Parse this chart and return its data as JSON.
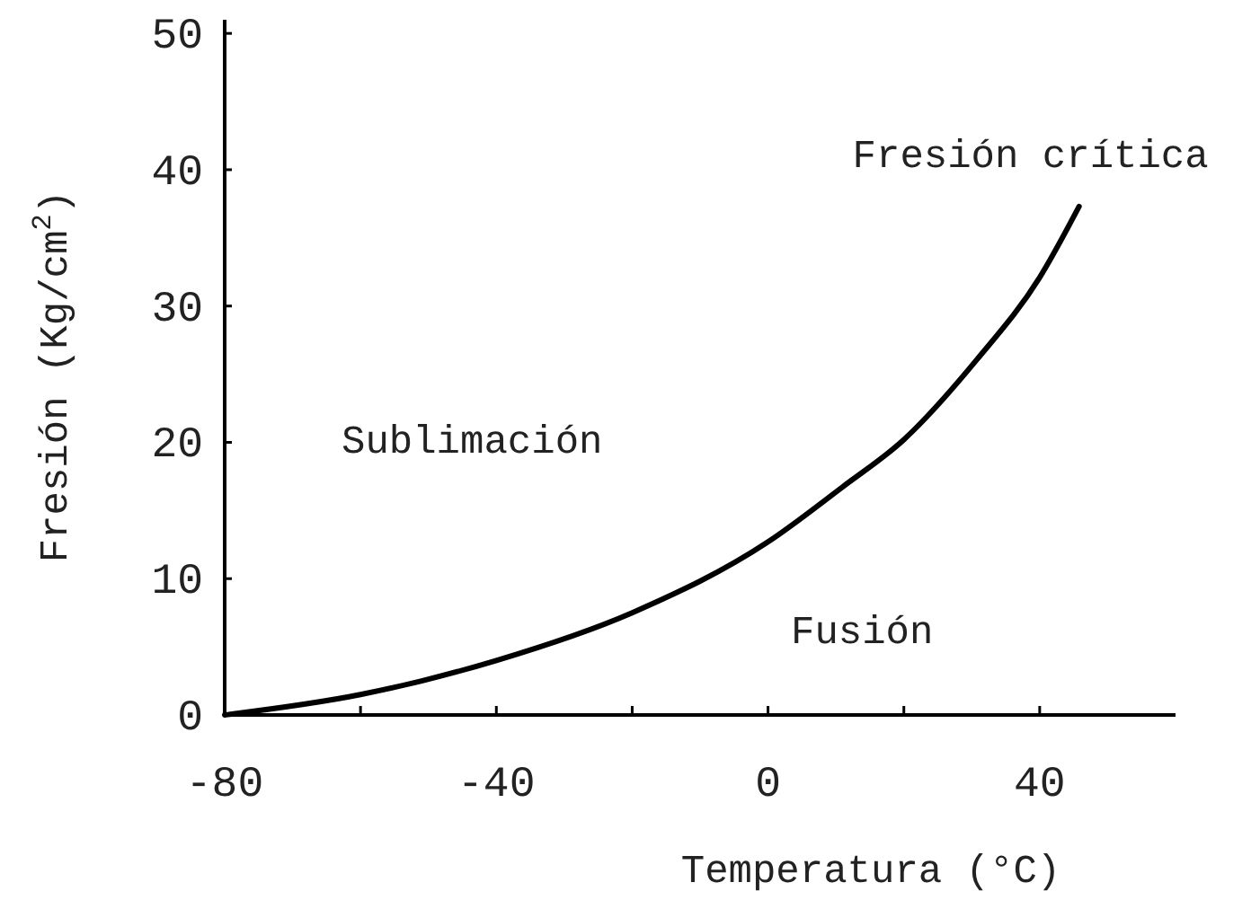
{
  "chart_data": {
    "type": "line",
    "xlabel": "Temperatura (°C)",
    "ylabel": "Fresión (Kg/cm$^{2}$)",
    "x": [
      -80,
      -60,
      -51,
      -40,
      -20,
      0,
      10.9,
      20,
      30.8,
      40,
      45.8
    ],
    "series": [
      {
        "color": "#000000",
        "values": [
          0,
          1.5,
          2.5,
          4.0,
          7.5,
          12.7,
          16.7,
          20.2,
          26.1,
          32.1,
          37.3
        ]
      }
    ],
    "xlim": [
      -80,
      60
    ],
    "ylim": [
      0,
      51
    ],
    "xticks": [
      -80,
      {
        "value": -60,
        "label": null
      },
      -40,
      {
        "value": -20,
        "label": null
      },
      0,
      {
        "value": 20,
        "label": null
      },
      40
    ],
    "yticks": [
      0,
      10,
      20,
      30,
      40,
      50
    ],
    "annotations": [
      {
        "text": "Fresión crítica",
        "x": 45.8,
        "y": 37.3
      },
      "Sublimación",
      "Fusión"
    ],
    "grid": false,
    "marker": "none",
    "line_style": "solid"
  }
}
